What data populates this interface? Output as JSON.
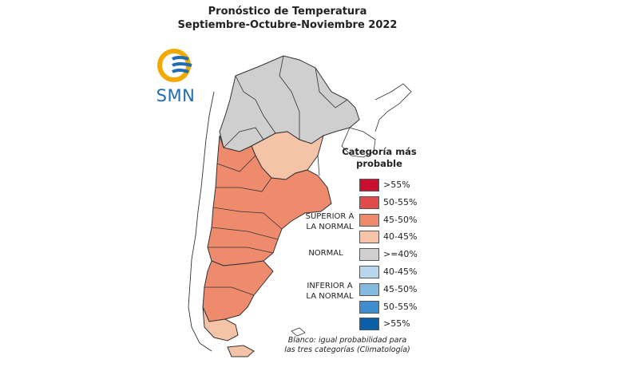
{
  "title": {
    "line1": "Pronóstico de Temperatura",
    "line2": "Septiembre-Octubre-Noviembre 2022"
  },
  "logo": {
    "text": "SMN",
    "color_primary": "#1f6db3",
    "color_secondary": "#f2a900"
  },
  "legend": {
    "title_line1": "Categoría más",
    "title_line2": "probable",
    "groups": [
      {
        "line1": "SUPERIOR A",
        "line2": "LA NORMAL"
      },
      {
        "line1": "NORMAL",
        "line2": ""
      },
      {
        "line1": "INFERIOR A",
        "line2": "LA NORMAL"
      }
    ],
    "items": [
      {
        "label": ">55%",
        "color": "#c8102e"
      },
      {
        "label": "50-55%",
        "color": "#e04b4b"
      },
      {
        "label": "45-50%",
        "color": "#ee8b6d"
      },
      {
        "label": "40-45%",
        "color": "#f5c3a7"
      },
      {
        "label": ">=40%",
        "color": "#cfcfcf"
      },
      {
        "label": "40-45%",
        "color": "#b9d7ec"
      },
      {
        "label": "45-50%",
        "color": "#84bade"
      },
      {
        "label": "50-55%",
        "color": "#3f8ccf"
      },
      {
        "label": ">55%",
        "color": "#0b5fa8"
      }
    ]
  },
  "footnote": {
    "line1": "Blanco: igual probabilidad para",
    "line2": "las tres categorías (Climatología)"
  }
}
